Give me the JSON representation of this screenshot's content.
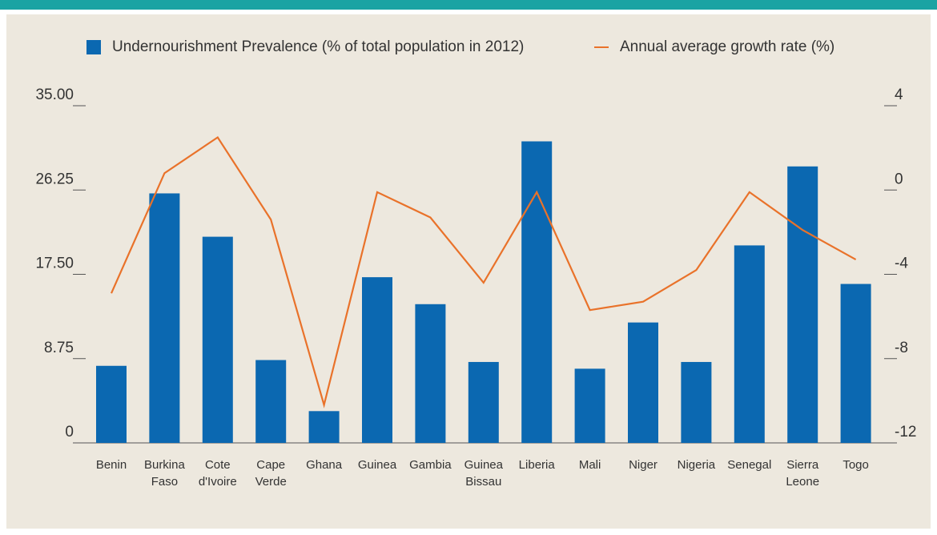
{
  "colors": {
    "top_bar": "#1aa3a3",
    "panel_background": "#ede8de",
    "bar": "#0b68b1",
    "line": "#e9722a",
    "axis": "#555555",
    "text": "#333333"
  },
  "chart_data": {
    "type": "bar",
    "categories": [
      [
        "Benin"
      ],
      [
        "Burkina",
        "Faso"
      ],
      [
        "Cote",
        "d'Ivoire"
      ],
      [
        "Cape",
        "Verde"
      ],
      [
        "Ghana"
      ],
      [
        "Guinea"
      ],
      [
        "Gambia"
      ],
      [
        "Guinea",
        "Bissau"
      ],
      [
        "Liberia"
      ],
      [
        "Mali"
      ],
      [
        "Niger"
      ],
      [
        "Nigeria"
      ],
      [
        "Senegal"
      ],
      [
        "Sierra",
        "Leone"
      ],
      [
        "Togo"
      ]
    ],
    "series": [
      {
        "name": "Undernourishment Prevalence (% of total population in 2012)",
        "type": "bar",
        "axis": "left",
        "values": [
          8.0,
          25.9,
          21.4,
          8.6,
          3.3,
          17.2,
          14.4,
          8.4,
          31.3,
          7.7,
          12.5,
          8.4,
          20.5,
          28.7,
          16.5
        ]
      },
      {
        "name": "Annual average growth rate (%)",
        "type": "line",
        "axis": "right",
        "values": [
          -4.9,
          0.8,
          2.5,
          -1.4,
          -10.2,
          -0.1,
          -1.3,
          -4.4,
          -0.1,
          -5.7,
          -5.3,
          -3.8,
          -0.1,
          -1.9,
          -3.3
        ]
      }
    ],
    "y_left": {
      "range": [
        0,
        35
      ],
      "ticks": [
        "0",
        "8.75",
        "17.50",
        "26.25",
        "35.00"
      ]
    },
    "y_right": {
      "range": [
        -12,
        4
      ],
      "ticks": [
        "-12",
        "-8",
        "-4",
        "0",
        "4"
      ]
    },
    "legend_position": "top",
    "grid": false
  }
}
